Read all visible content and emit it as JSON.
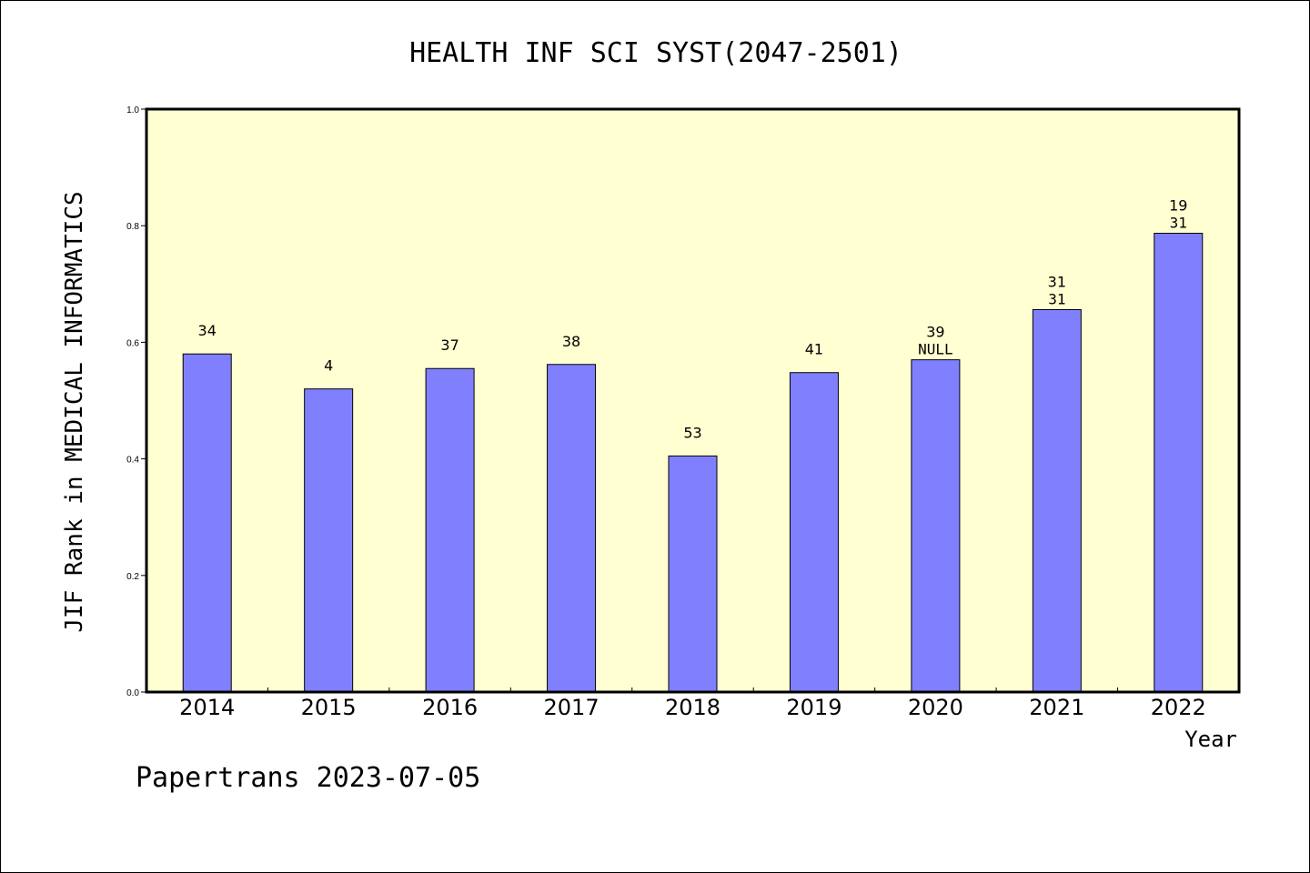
{
  "colors": {
    "plot_background": "#ffffd2",
    "bar_fill": "#8080ff",
    "axis": "#000000"
  },
  "chart_data": {
    "type": "bar",
    "title": "HEALTH INF SCI SYST(2047-2501)",
    "xlabel": "Year",
    "ylabel": "JIF Rank in MEDICAL INFORMATICS",
    "ylim": [
      0.0,
      1.0
    ],
    "yticks": [
      "0.0",
      "0.2",
      "0.4",
      "0.6",
      "0.8",
      "1.0"
    ],
    "grid": false,
    "categories": [
      "2014",
      "2015",
      "2016",
      "2017",
      "2018",
      "2019",
      "2020",
      "2021",
      "2022"
    ],
    "values": [
      0.58,
      0.52,
      0.555,
      0.562,
      0.405,
      0.548,
      0.57,
      0.656,
      0.787
    ],
    "labels_top": [
      "",
      "",
      "",
      "",
      "",
      "",
      "39",
      "31",
      "19"
    ],
    "labels_bottom": [
      "34",
      "4",
      "37",
      "38",
      "53",
      "41",
      "NULL",
      "31",
      "31"
    ]
  },
  "footer": "Papertrans 2023-07-05"
}
